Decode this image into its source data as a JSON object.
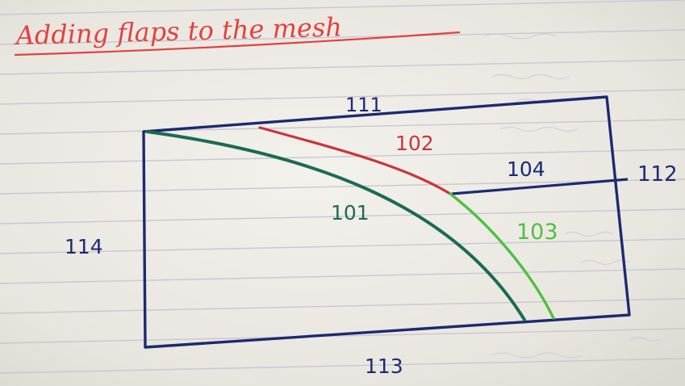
{
  "title": "Adding flaps to the mesh",
  "labels": {
    "curve_101": "101",
    "curve_102": "102",
    "curve_103": "103",
    "line_104": "104",
    "edge_111": "111",
    "edge_112": "112",
    "edge_113": "113",
    "edge_114": "114"
  },
  "colors": {
    "paper": "#efece6",
    "rule_line": "#c9c7cf",
    "margin_line": "#d9a7a7",
    "ink_blue": "#1b2a72",
    "ink_red": "#c8363d",
    "ink_dark_green": "#1a6b52",
    "ink_light_green": "#4fbf3f",
    "title_red": "#e2423f"
  }
}
